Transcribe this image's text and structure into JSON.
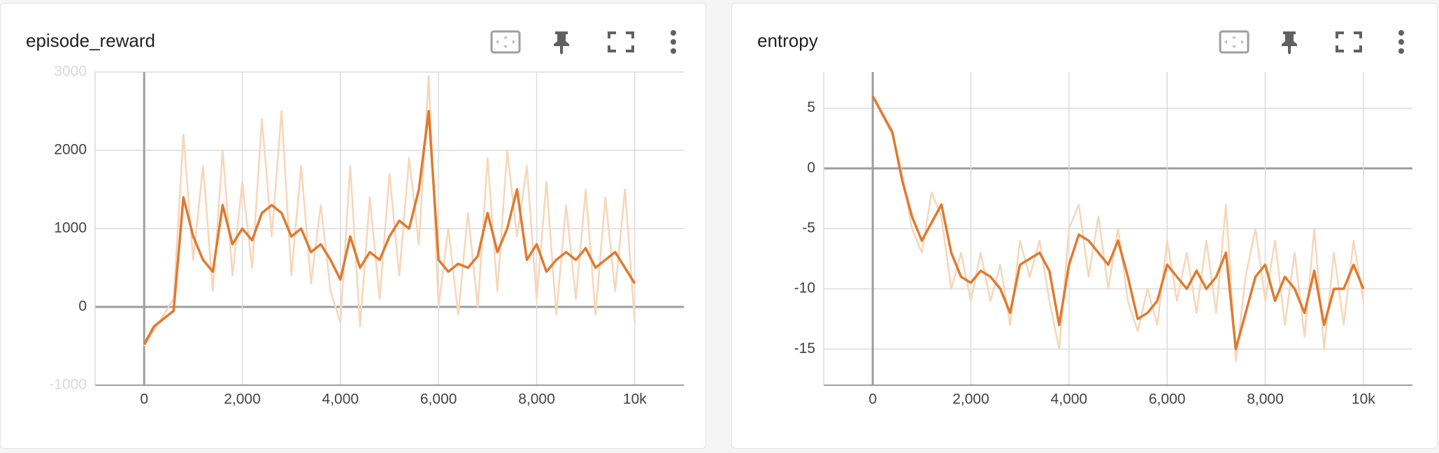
{
  "chart_data": [
    {
      "type": "line",
      "title": "episode_reward",
      "x": [
        0,
        200,
        400,
        600,
        800,
        1000,
        1200,
        1400,
        1600,
        1800,
        2000,
        2200,
        2400,
        2600,
        2800,
        3000,
        3200,
        3400,
        3600,
        3800,
        4000,
        4200,
        4400,
        4600,
        4800,
        5000,
        5200,
        5400,
        5600,
        5800,
        6000,
        6200,
        6400,
        6600,
        6800,
        7000,
        7200,
        7400,
        7600,
        7800,
        8000,
        8200,
        8400,
        8600,
        8800,
        9000,
        9200,
        9400,
        9600,
        9800,
        10000
      ],
      "series": [
        {
          "color": "#f7d6b8",
          "values": [
            -500,
            -300,
            -100,
            100,
            2200,
            600,
            1800,
            200,
            2000,
            400,
            1600,
            500,
            2400,
            900,
            2500,
            400,
            1800,
            300,
            1300,
            200,
            -200,
            1800,
            -250,
            1400,
            100,
            1700,
            400,
            1900,
            800,
            2950,
            0,
            1000,
            -100,
            1200,
            0,
            1900,
            200,
            2000,
            900,
            1800,
            100,
            1600,
            -100,
            1300,
            100,
            1500,
            -100,
            1400,
            200,
            1500,
            -200
          ]
        },
        {
          "color": "#df7a30",
          "values": [
            -480,
            -250,
            -150,
            -50,
            1400,
            900,
            600,
            450,
            1300,
            800,
            1000,
            850,
            1200,
            1300,
            1200,
            900,
            1000,
            700,
            800,
            600,
            350,
            900,
            500,
            700,
            600,
            900,
            1100,
            1000,
            1500,
            2500,
            600,
            450,
            550,
            500,
            650,
            1200,
            700,
            1000,
            1500,
            600,
            800,
            450,
            600,
            700,
            600,
            750,
            500,
            600,
            700,
            500,
            300
          ]
        }
      ],
      "xlim": [
        -1000,
        11000
      ],
      "ylim": [
        -1000,
        3000
      ],
      "xticks": [
        0,
        {
          "value": 2000,
          "label": "2,000"
        },
        {
          "value": 4000,
          "label": "4,000"
        },
        {
          "value": 6000,
          "label": "6,000"
        },
        {
          "value": 8000,
          "label": "8,000"
        },
        {
          "value": 10000,
          "label": "10k"
        }
      ],
      "yticks": [
        -1000,
        0,
        1000,
        2000,
        3000
      ],
      "grid": true
    },
    {
      "type": "line",
      "title": "entropy",
      "x": [
        0,
        200,
        400,
        600,
        800,
        1000,
        1200,
        1400,
        1600,
        1800,
        2000,
        2200,
        2400,
        2600,
        2800,
        3000,
        3200,
        3400,
        3600,
        3800,
        4000,
        4200,
        4400,
        4600,
        4800,
        5000,
        5200,
        5400,
        5600,
        5800,
        6000,
        6200,
        6400,
        6600,
        6800,
        7000,
        7200,
        7400,
        7600,
        7800,
        8000,
        8200,
        8400,
        8600,
        8800,
        9000,
        9200,
        9400,
        9600,
        9800,
        10000
      ],
      "series": [
        {
          "color": "#f7d6b8",
          "values": [
            6,
            4.3,
            2.8,
            -0.5,
            -5,
            -7,
            -2,
            -4,
            -10,
            -7,
            -11,
            -7,
            -11,
            -8,
            -13,
            -6,
            -9,
            -6,
            -11,
            -15,
            -5,
            -3,
            -9,
            -4,
            -10,
            -5,
            -11,
            -13.5,
            -10,
            -13,
            -6,
            -11,
            -7,
            -12,
            -6,
            -12,
            -3,
            -16,
            -9,
            -5,
            -11,
            -6,
            -13,
            -7,
            -14,
            -5,
            -15,
            -7,
            -13,
            -6,
            -11
          ]
        },
        {
          "color": "#df7a30",
          "values": [
            6,
            4.5,
            3,
            -1,
            -4,
            -6,
            -4.5,
            -3,
            -7,
            -9,
            -9.5,
            -8.5,
            -9,
            -10,
            -12,
            -8,
            -7.5,
            -7,
            -8.5,
            -13,
            -8,
            -5.5,
            -6,
            -7,
            -8,
            -6,
            -9,
            -12.5,
            -12,
            -11,
            -8,
            -9,
            -10,
            -8.5,
            -10,
            -9,
            -7,
            -15,
            -12,
            -9,
            -8,
            -11,
            -9,
            -10,
            -12,
            -8.5,
            -13,
            -10,
            -10,
            -8,
            -10
          ]
        }
      ],
      "xlim": [
        -1000,
        11000
      ],
      "ylim": [
        -18,
        8
      ],
      "xticks": [
        0,
        {
          "value": 2000,
          "label": "2,000"
        },
        {
          "value": 4000,
          "label": "4,000"
        },
        {
          "value": 6000,
          "label": "6,000"
        },
        {
          "value": 8000,
          "label": "8,000"
        },
        {
          "value": 10000,
          "label": "10k"
        }
      ],
      "yticks": [
        -15,
        -10,
        -5,
        0,
        5
      ],
      "grid": true
    }
  ]
}
